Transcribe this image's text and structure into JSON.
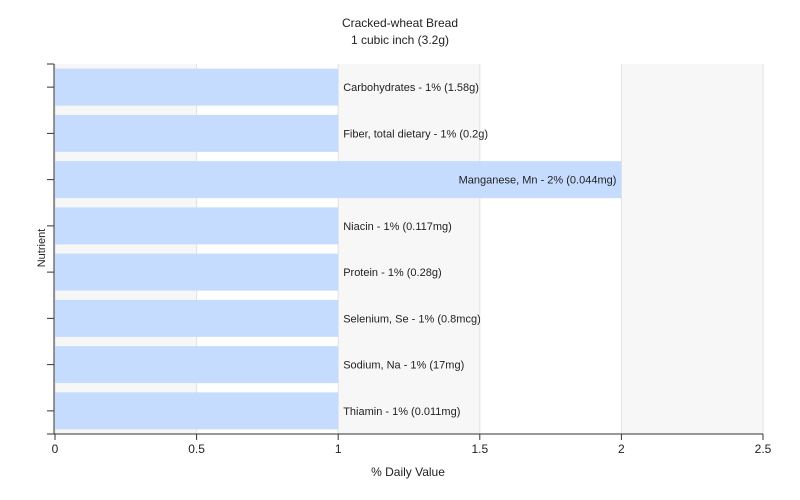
{
  "chart_data": {
    "type": "bar",
    "orientation": "horizontal",
    "title": "Cracked-wheat Bread",
    "subtitle": "1 cubic inch (3.2g)",
    "xlabel": "% Daily Value",
    "ylabel": "Nutrient",
    "xlim": [
      0,
      2.5
    ],
    "xticks": [
      "0",
      "0.5",
      "1",
      "1.5",
      "2",
      "2.5"
    ],
    "grid": true,
    "bar_color": "#c6dcff",
    "categories": [
      "Carbohydrates",
      "Fiber, total dietary",
      "Manganese, Mn",
      "Niacin",
      "Protein",
      "Selenium, Se",
      "Sodium, Na",
      "Thiamin"
    ],
    "values": [
      1,
      1,
      2,
      1,
      1,
      1,
      1,
      1
    ],
    "labels": [
      "Carbohydrates - 1% (1.58g)",
      "Fiber, total dietary - 1% (0.2g)",
      "Manganese, Mn - 2% (0.044mg)",
      "Niacin - 1% (0.117mg)",
      "Protein - 1% (0.28g)",
      "Selenium, Se - 1% (0.8mcg)",
      "Sodium, Na - 1% (17mg)",
      "Thiamin - 1% (0.011mg)"
    ]
  }
}
